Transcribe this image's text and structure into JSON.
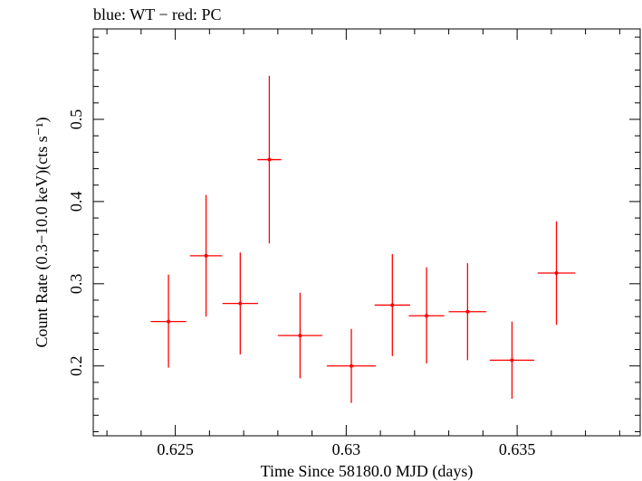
{
  "chart_data": {
    "type": "scatter",
    "title": "blue: WT − red: PC",
    "xlabel": "Time Since 58180.0 MJD (days)",
    "ylabel": "Count Rate (0.3−10.0 keV)(cts s⁻¹)",
    "xlim": [
      0.6226,
      0.6386
    ],
    "ylim": [
      0.115,
      0.61
    ],
    "xticks_major": [
      0.625,
      0.63,
      0.635
    ],
    "xtick_labels": [
      "0.625",
      "0.63",
      "0.635"
    ],
    "yticks_major": [
      0.2,
      0.3,
      0.4,
      0.5
    ],
    "ytick_labels": [
      "0.2",
      "0.3",
      "0.4",
      "0.5"
    ],
    "grid": false,
    "series": [
      {
        "name": "PC",
        "color": "#ff0000",
        "points": [
          {
            "x": 0.6248,
            "xerr": 0.00052,
            "y": 0.254,
            "yerr_low": 0.056,
            "yerr_high": 0.057
          },
          {
            "x": 0.6259,
            "xerr": 0.00047,
            "y": 0.334,
            "yerr_low": 0.074,
            "yerr_high": 0.074
          },
          {
            "x": 0.6269,
            "xerr": 0.00052,
            "y": 0.276,
            "yerr_low": 0.062,
            "yerr_high": 0.062
          },
          {
            "x": 0.62775,
            "xerr": 0.00035,
            "y": 0.451,
            "yerr_low": 0.102,
            "yerr_high": 0.102
          },
          {
            "x": 0.62865,
            "xerr": 0.00065,
            "y": 0.237,
            "yerr_low": 0.052,
            "yerr_high": 0.052
          },
          {
            "x": 0.63015,
            "xerr": 0.00072,
            "y": 0.2,
            "yerr_low": 0.045,
            "yerr_high": 0.045
          },
          {
            "x": 0.63135,
            "xerr": 0.00052,
            "y": 0.274,
            "yerr_low": 0.062,
            "yerr_high": 0.062
          },
          {
            "x": 0.63235,
            "xerr": 0.00052,
            "y": 0.261,
            "yerr_low": 0.058,
            "yerr_high": 0.059
          },
          {
            "x": 0.63355,
            "xerr": 0.00055,
            "y": 0.266,
            "yerr_low": 0.059,
            "yerr_high": 0.059
          },
          {
            "x": 0.63485,
            "xerr": 0.00065,
            "y": 0.207,
            "yerr_low": 0.047,
            "yerr_high": 0.047
          },
          {
            "x": 0.63615,
            "xerr": 0.00055,
            "y": 0.313,
            "yerr_low": 0.063,
            "yerr_high": 0.063
          }
        ]
      }
    ]
  }
}
